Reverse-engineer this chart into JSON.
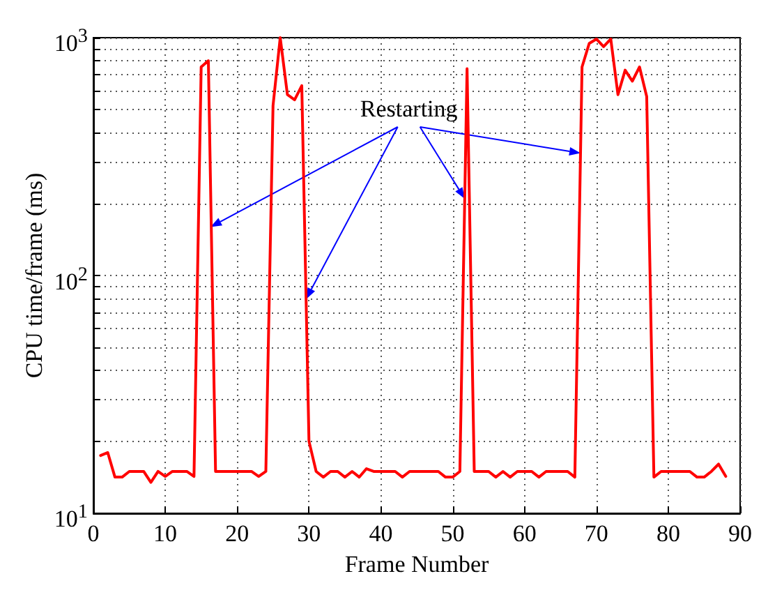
{
  "chart_data": {
    "type": "line",
    "xlabel": "Frame Number",
    "ylabel": "CPU time/frame (ms)",
    "annotations": [
      {
        "text": "Restarting",
        "x": 16.3,
        "y": 160
      }
    ],
    "x": [
      1,
      2,
      3,
      4,
      5,
      6,
      7,
      8,
      9,
      10,
      11,
      12,
      13,
      14,
      15,
      16,
      17,
      18,
      19,
      20,
      21,
      22,
      23,
      24,
      25,
      26,
      27,
      28,
      29,
      30,
      31,
      32,
      33,
      34,
      35,
      36,
      37,
      38,
      39,
      40,
      41,
      42,
      43,
      44,
      45,
      46,
      47,
      48,
      49,
      50,
      51,
      52,
      53,
      54,
      55,
      56,
      57,
      58,
      59,
      60,
      61,
      62,
      63,
      64,
      65,
      66,
      67,
      68,
      69,
      70,
      71,
      72,
      73,
      74,
      75,
      76,
      77,
      78,
      79,
      80,
      81,
      82,
      83,
      84,
      85,
      86,
      87,
      88
    ],
    "series": [
      {
        "color": "#ff0000",
        "values": [
          17.5,
          18,
          14.2,
          14.2,
          15,
          15,
          15,
          13.5,
          15,
          14.3,
          15,
          15,
          15,
          14.3,
          753,
          800,
          15,
          15,
          15,
          15,
          15,
          15,
          14.3,
          15,
          518,
          1000,
          576,
          548,
          628,
          20.1,
          15,
          14.2,
          15,
          15,
          14.2,
          15,
          14.2,
          15.4,
          15,
          15,
          15,
          15,
          14.2,
          15,
          15,
          15,
          15,
          15,
          14.2,
          14.2,
          15,
          740,
          15,
          15,
          15,
          14.2,
          15,
          14.2,
          15,
          15,
          15,
          14.2,
          15,
          15,
          15,
          15,
          14.2,
          753,
          946,
          987,
          917,
          987,
          576,
          730,
          656,
          753,
          565,
          14.2,
          15,
          15,
          15,
          15,
          15,
          14.2,
          14.2,
          15,
          16.1,
          14.3
        ]
      }
    ],
    "log": "y",
    "xlim": [
      0,
      90
    ],
    "xticks": [
      0,
      10,
      20,
      30,
      40,
      50,
      60,
      70,
      80,
      90
    ],
    "ylim": [
      10,
      1000
    ],
    "yticks": [
      {
        "value": 10,
        "label": "10$^{1}$"
      },
      {
        "value": 20,
        "label": null
      },
      {
        "value": 30,
        "label": null
      },
      {
        "value": 40,
        "label": null
      },
      {
        "value": 50,
        "label": null
      },
      {
        "value": 60,
        "label": null
      },
      {
        "value": 70,
        "label": null
      },
      {
        "value": 80,
        "label": null
      },
      {
        "value": 90,
        "label": null
      },
      {
        "value": 100,
        "label": "10$^{2}$"
      },
      {
        "value": 200,
        "label": null
      },
      {
        "value": 300,
        "label": null
      },
      {
        "value": 400,
        "label": null
      },
      {
        "value": 500,
        "label": null
      },
      {
        "value": 600,
        "label": null
      },
      {
        "value": 700,
        "label": null
      },
      {
        "value": 800,
        "label": null
      },
      {
        "value": 900,
        "label": null
      },
      {
        "value": 1000,
        "label": "10$^{3}$"
      }
    ],
    "grid": true,
    "marker": "none",
    "line_style": "solid"
  }
}
